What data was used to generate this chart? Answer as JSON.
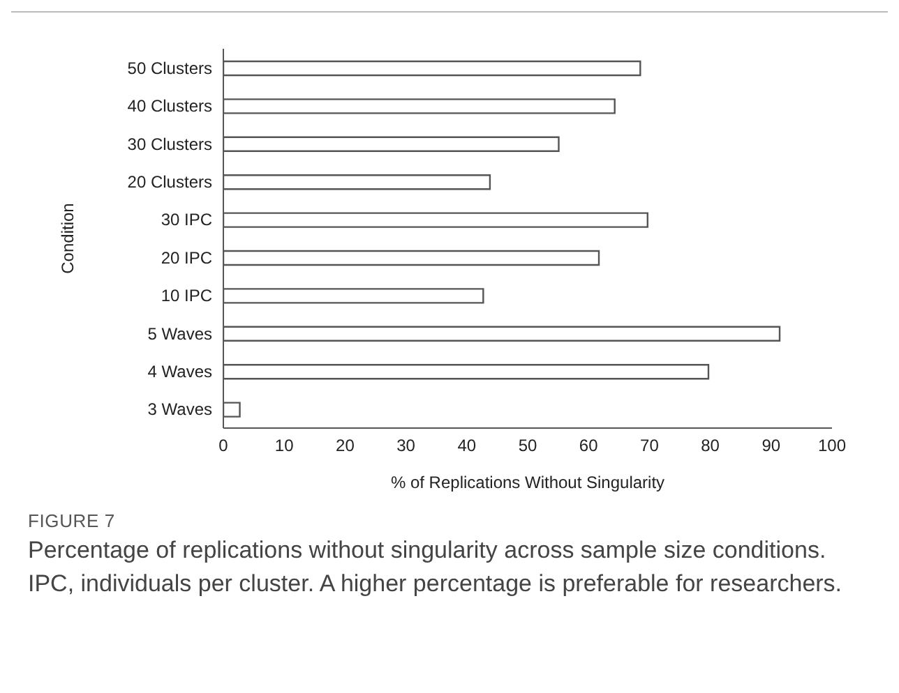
{
  "chart_data": {
    "type": "bar",
    "orientation": "horizontal",
    "title": "FIGURE 7",
    "subtitle": "Percentage of replications without singularity across sample size conditions. IPC, individuals per cluster. A higher percentage is preferable for researchers.",
    "xlabel": "% of Replications Without Singularity",
    "ylabel": "Condition",
    "categories": [
      "50 Clusters",
      "40 Clusters",
      "30 Clusters",
      "20 Clusters",
      "30 IPC",
      "20 IPC",
      "10 IPC",
      "5 Waves",
      "4 Waves",
      "3 Waves"
    ],
    "values": [
      68.5,
      64.3,
      55.1,
      43.8,
      69.7,
      61.7,
      42.7,
      91.4,
      79.7,
      2.7
    ],
    "color": "#ffffff",
    "xlim": [
      0,
      100
    ],
    "xticks": [
      0,
      10,
      20,
      30,
      40,
      50,
      60,
      70,
      80,
      90,
      100
    ],
    "grid": false,
    "legend": false
  }
}
